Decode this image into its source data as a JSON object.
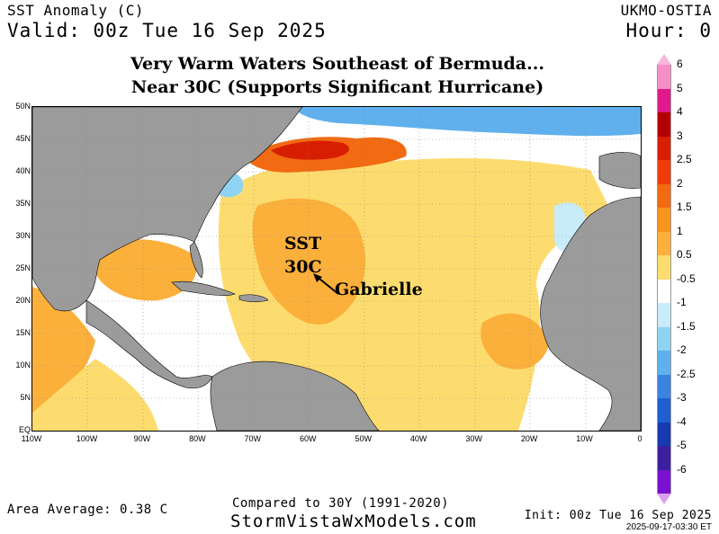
{
  "header": {
    "product": "SST Anomaly (C)",
    "valid": "Valid: 00z Tue 16 Sep 2025",
    "source": "UKMO-OSTIA",
    "hour": "Hour: 0"
  },
  "title": {
    "line1": "Very Warm Waters Southeast of Bermuda...",
    "line2": "Near 30C (Supports Significant Hurricane)"
  },
  "annotations": {
    "sst_line1": "SST",
    "sst_line2": "30C",
    "storm_name": "Gabrielle"
  },
  "axes": {
    "lat_labels": [
      "50N",
      "45N",
      "40N",
      "35N",
      "30N",
      "25N",
      "20N",
      "15N",
      "10N",
      "5N",
      "EQ"
    ],
    "lon_labels": [
      "110W",
      "100W",
      "90W",
      "80W",
      "70W",
      "60W",
      "50W",
      "40W",
      "30W",
      "20W",
      "10W",
      "0"
    ]
  },
  "colorbar": {
    "labels": [
      "6",
      "5",
      "4",
      "3",
      "2.5",
      "2",
      "1.5",
      "1",
      "0.5",
      "-0.5",
      "-1",
      "-1.5",
      "-2",
      "-2.5",
      "-3",
      "-4",
      "-5",
      "-6"
    ],
    "colors": [
      "#f48fc8",
      "#e0198c",
      "#b30000",
      "#d81e00",
      "#f03c0a",
      "#f26a12",
      "#f7941d",
      "#fbb03b",
      "#fddc6f",
      "#ffffff",
      "#c8ecfa",
      "#8fd3f2",
      "#5fb0ec",
      "#3a84e0",
      "#1f5fd0",
      "#173ab0",
      "#3b1fa0",
      "#7a10d0"
    ],
    "top_cap": "#f7b6d9",
    "bottom_cap": "#d9a0f0"
  },
  "footer": {
    "area_average": "Area Average: 0.38 C",
    "compared": "Compared to 30Y (1991-2020)",
    "site": "StormVistaWxModels.com",
    "init": "Init: 00z Tue 16 Sep 2025",
    "timestamp": "2025-09-17-03:30 ET"
  },
  "map_colors": {
    "land": "#9b9b9b",
    "warm1": "#fddc6f",
    "warm2": "#fbb03b",
    "warm3": "#f7941d",
    "hot1": "#f26a12",
    "hot2": "#d81e00",
    "cool1": "#c8ecfa",
    "cool2": "#5fb0ec",
    "cool3": "#1f5fd0"
  }
}
